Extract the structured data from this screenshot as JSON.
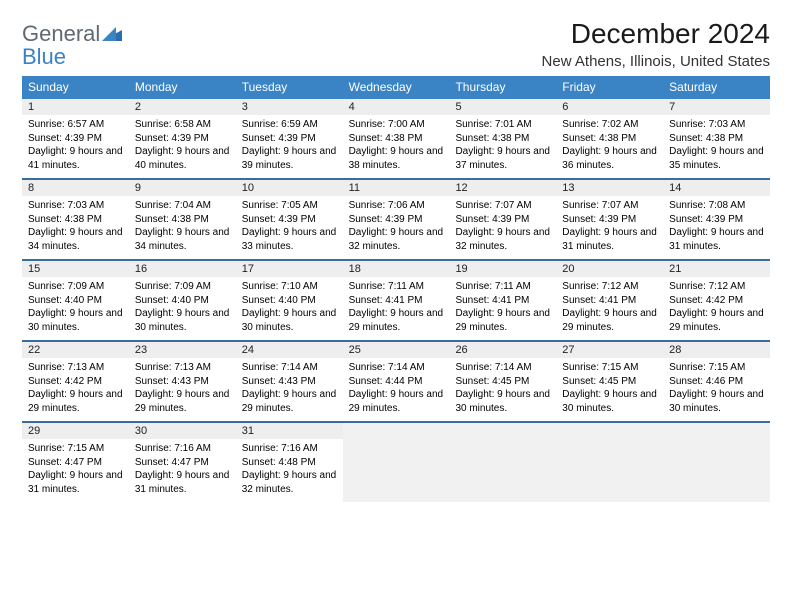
{
  "logo": {
    "line1": "General",
    "line2": "Blue"
  },
  "title": "December 2024",
  "location": "New Athens, Illinois, United States",
  "colors": {
    "header_bg": "#3a83c5",
    "week_divider": "#3a6d9c",
    "daynum_bg": "#eeeeee",
    "empty_bg": "#f1f1f1",
    "logo_gray": "#5f6a72",
    "logo_blue": "#3a83c5"
  },
  "layout": {
    "columns": 7,
    "rows": 5
  },
  "day_headers": [
    "Sunday",
    "Monday",
    "Tuesday",
    "Wednesday",
    "Thursday",
    "Friday",
    "Saturday"
  ],
  "weeks": [
    [
      {
        "n": "1",
        "sunrise": "Sunrise: 6:57 AM",
        "sunset": "Sunset: 4:39 PM",
        "day": "Daylight: 9 hours and 41 minutes."
      },
      {
        "n": "2",
        "sunrise": "Sunrise: 6:58 AM",
        "sunset": "Sunset: 4:39 PM",
        "day": "Daylight: 9 hours and 40 minutes."
      },
      {
        "n": "3",
        "sunrise": "Sunrise: 6:59 AM",
        "sunset": "Sunset: 4:39 PM",
        "day": "Daylight: 9 hours and 39 minutes."
      },
      {
        "n": "4",
        "sunrise": "Sunrise: 7:00 AM",
        "sunset": "Sunset: 4:38 PM",
        "day": "Daylight: 9 hours and 38 minutes."
      },
      {
        "n": "5",
        "sunrise": "Sunrise: 7:01 AM",
        "sunset": "Sunset: 4:38 PM",
        "day": "Daylight: 9 hours and 37 minutes."
      },
      {
        "n": "6",
        "sunrise": "Sunrise: 7:02 AM",
        "sunset": "Sunset: 4:38 PM",
        "day": "Daylight: 9 hours and 36 minutes."
      },
      {
        "n": "7",
        "sunrise": "Sunrise: 7:03 AM",
        "sunset": "Sunset: 4:38 PM",
        "day": "Daylight: 9 hours and 35 minutes."
      }
    ],
    [
      {
        "n": "8",
        "sunrise": "Sunrise: 7:03 AM",
        "sunset": "Sunset: 4:38 PM",
        "day": "Daylight: 9 hours and 34 minutes."
      },
      {
        "n": "9",
        "sunrise": "Sunrise: 7:04 AM",
        "sunset": "Sunset: 4:38 PM",
        "day": "Daylight: 9 hours and 34 minutes."
      },
      {
        "n": "10",
        "sunrise": "Sunrise: 7:05 AM",
        "sunset": "Sunset: 4:39 PM",
        "day": "Daylight: 9 hours and 33 minutes."
      },
      {
        "n": "11",
        "sunrise": "Sunrise: 7:06 AM",
        "sunset": "Sunset: 4:39 PM",
        "day": "Daylight: 9 hours and 32 minutes."
      },
      {
        "n": "12",
        "sunrise": "Sunrise: 7:07 AM",
        "sunset": "Sunset: 4:39 PM",
        "day": "Daylight: 9 hours and 32 minutes."
      },
      {
        "n": "13",
        "sunrise": "Sunrise: 7:07 AM",
        "sunset": "Sunset: 4:39 PM",
        "day": "Daylight: 9 hours and 31 minutes."
      },
      {
        "n": "14",
        "sunrise": "Sunrise: 7:08 AM",
        "sunset": "Sunset: 4:39 PM",
        "day": "Daylight: 9 hours and 31 minutes."
      }
    ],
    [
      {
        "n": "15",
        "sunrise": "Sunrise: 7:09 AM",
        "sunset": "Sunset: 4:40 PM",
        "day": "Daylight: 9 hours and 30 minutes."
      },
      {
        "n": "16",
        "sunrise": "Sunrise: 7:09 AM",
        "sunset": "Sunset: 4:40 PM",
        "day": "Daylight: 9 hours and 30 minutes."
      },
      {
        "n": "17",
        "sunrise": "Sunrise: 7:10 AM",
        "sunset": "Sunset: 4:40 PM",
        "day": "Daylight: 9 hours and 30 minutes."
      },
      {
        "n": "18",
        "sunrise": "Sunrise: 7:11 AM",
        "sunset": "Sunset: 4:41 PM",
        "day": "Daylight: 9 hours and 29 minutes."
      },
      {
        "n": "19",
        "sunrise": "Sunrise: 7:11 AM",
        "sunset": "Sunset: 4:41 PM",
        "day": "Daylight: 9 hours and 29 minutes."
      },
      {
        "n": "20",
        "sunrise": "Sunrise: 7:12 AM",
        "sunset": "Sunset: 4:41 PM",
        "day": "Daylight: 9 hours and 29 minutes."
      },
      {
        "n": "21",
        "sunrise": "Sunrise: 7:12 AM",
        "sunset": "Sunset: 4:42 PM",
        "day": "Daylight: 9 hours and 29 minutes."
      }
    ],
    [
      {
        "n": "22",
        "sunrise": "Sunrise: 7:13 AM",
        "sunset": "Sunset: 4:42 PM",
        "day": "Daylight: 9 hours and 29 minutes."
      },
      {
        "n": "23",
        "sunrise": "Sunrise: 7:13 AM",
        "sunset": "Sunset: 4:43 PM",
        "day": "Daylight: 9 hours and 29 minutes."
      },
      {
        "n": "24",
        "sunrise": "Sunrise: 7:14 AM",
        "sunset": "Sunset: 4:43 PM",
        "day": "Daylight: 9 hours and 29 minutes."
      },
      {
        "n": "25",
        "sunrise": "Sunrise: 7:14 AM",
        "sunset": "Sunset: 4:44 PM",
        "day": "Daylight: 9 hours and 29 minutes."
      },
      {
        "n": "26",
        "sunrise": "Sunrise: 7:14 AM",
        "sunset": "Sunset: 4:45 PM",
        "day": "Daylight: 9 hours and 30 minutes."
      },
      {
        "n": "27",
        "sunrise": "Sunrise: 7:15 AM",
        "sunset": "Sunset: 4:45 PM",
        "day": "Daylight: 9 hours and 30 minutes."
      },
      {
        "n": "28",
        "sunrise": "Sunrise: 7:15 AM",
        "sunset": "Sunset: 4:46 PM",
        "day": "Daylight: 9 hours and 30 minutes."
      }
    ],
    [
      {
        "n": "29",
        "sunrise": "Sunrise: 7:15 AM",
        "sunset": "Sunset: 4:47 PM",
        "day": "Daylight: 9 hours and 31 minutes."
      },
      {
        "n": "30",
        "sunrise": "Sunrise: 7:16 AM",
        "sunset": "Sunset: 4:47 PM",
        "day": "Daylight: 9 hours and 31 minutes."
      },
      {
        "n": "31",
        "sunrise": "Sunrise: 7:16 AM",
        "sunset": "Sunset: 4:48 PM",
        "day": "Daylight: 9 hours and 32 minutes."
      },
      {
        "empty": true
      },
      {
        "empty": true
      },
      {
        "empty": true
      },
      {
        "empty": true
      }
    ]
  ]
}
